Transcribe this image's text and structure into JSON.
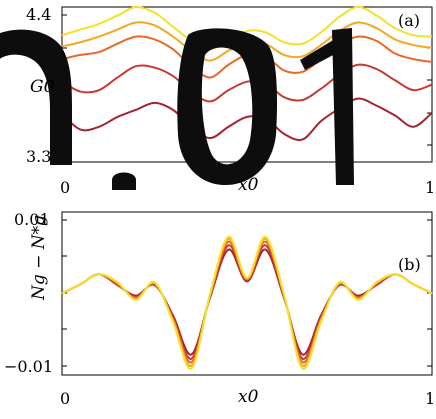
{
  "chart_data": [
    {
      "type": "line",
      "panel_label": "(a)",
      "xlabel": "x0",
      "ylabel": "G0",
      "xlim": [
        0,
        1
      ],
      "ylim": [
        3.3,
        4.4
      ],
      "y_tick_labels": [
        "4.4",
        "3.3"
      ],
      "x_tick_labels": [
        "0",
        "1"
      ],
      "x": [
        0,
        0.05,
        0.1,
        0.15,
        0.2,
        0.25,
        0.3,
        0.35,
        0.4,
        0.45,
        0.5,
        0.55,
        0.6,
        0.65,
        0.7,
        0.75,
        0.8,
        0.85,
        0.9,
        0.95,
        1.0
      ],
      "series": [
        {
          "color": "#f2e02a",
          "values": [
            4.2,
            4.24,
            4.28,
            4.34,
            4.4,
            4.36,
            4.26,
            4.16,
            4.1,
            4.17,
            4.23,
            4.22,
            4.15,
            4.14,
            4.22,
            4.33,
            4.4,
            4.34,
            4.25,
            4.2,
            4.19
          ]
        },
        {
          "color": "#f5a623",
          "values": [
            4.12,
            4.15,
            4.19,
            4.24,
            4.29,
            4.27,
            4.19,
            4.09,
            4.02,
            4.09,
            4.15,
            4.14,
            4.06,
            4.05,
            4.13,
            4.23,
            4.29,
            4.25,
            4.17,
            4.13,
            4.11
          ]
        },
        {
          "color": "#e8692a",
          "values": [
            4.03,
            4.06,
            4.08,
            4.14,
            4.19,
            4.17,
            4.1,
            3.98,
            3.9,
            3.99,
            4.06,
            4.05,
            3.95,
            3.94,
            4.03,
            4.13,
            4.19,
            4.16,
            4.07,
            4.03,
            4.01
          ]
        },
        {
          "color": "#c63a2f",
          "values": [
            3.87,
            3.8,
            3.81,
            3.9,
            3.98,
            3.97,
            3.91,
            3.8,
            3.73,
            3.81,
            3.87,
            3.86,
            3.76,
            3.74,
            3.82,
            3.92,
            3.99,
            3.96,
            3.88,
            3.81,
            3.85
          ]
        },
        {
          "color": "#a5232c",
          "values": [
            3.64,
            3.53,
            3.55,
            3.62,
            3.67,
            3.72,
            3.67,
            3.55,
            3.47,
            3.55,
            3.62,
            3.61,
            3.5,
            3.46,
            3.59,
            3.68,
            3.75,
            3.7,
            3.63,
            3.55,
            3.65
          ]
        }
      ]
    },
    {
      "type": "line",
      "panel_label": "(b)",
      "xlabel": "x0",
      "ylabel": "Ng − N*g",
      "xlim": [
        0,
        1
      ],
      "ylim": [
        -0.0115,
        0.0115
      ],
      "y_tick_labels": [
        "0.01",
        "−0.01"
      ],
      "x_tick_labels": [
        "0",
        "1"
      ],
      "x": [
        0,
        0.05,
        0.1,
        0.15,
        0.2,
        0.25,
        0.3,
        0.35,
        0.4,
        0.45,
        0.5,
        0.55,
        0.6,
        0.65,
        0.7,
        0.75,
        0.8,
        0.85,
        0.9,
        0.95,
        1.0
      ],
      "series": [
        {
          "color": "#a5232c",
          "values": [
            0.0,
            0.0013,
            0.0027,
            0.0012,
            -0.0003,
            0.0012,
            -0.0031,
            -0.0086,
            -0.0006,
            0.0062,
            0.0017,
            0.0062,
            -0.0006,
            -0.0086,
            -0.0031,
            0.0012,
            -0.0003,
            0.0012,
            0.0027,
            0.0013,
            0.0
          ]
        },
        {
          "color": "#c63a2f",
          "values": [
            0.0,
            0.0013,
            0.0027,
            0.0013,
            -0.0005,
            0.0013,
            -0.0034,
            -0.0092,
            -0.0004,
            0.0068,
            0.0019,
            0.0068,
            -0.0004,
            -0.0092,
            -0.0034,
            0.0013,
            -0.0005,
            0.0013,
            0.0027,
            0.0013,
            0.0
          ]
        },
        {
          "color": "#e8692a",
          "values": [
            0.0,
            0.0013,
            0.0027,
            0.0014,
            -0.0006,
            0.0014,
            -0.0036,
            -0.0097,
            -0.0003,
            0.0073,
            0.002,
            0.0073,
            -0.0003,
            -0.0097,
            -0.0036,
            0.0014,
            -0.0006,
            0.0014,
            0.0027,
            0.0013,
            0.0
          ]
        },
        {
          "color": "#f5a623",
          "values": [
            0.0,
            0.0013,
            0.0027,
            0.0015,
            -0.0008,
            0.0015,
            -0.0038,
            -0.0102,
            -0.0002,
            0.0077,
            0.0021,
            0.0077,
            -0.0002,
            -0.0102,
            -0.0038,
            0.0015,
            -0.0008,
            0.0015,
            0.0027,
            0.0013,
            0.0
          ]
        },
        {
          "color": "#f2e02a",
          "values": [
            0.0,
            0.0013,
            0.0027,
            0.0016,
            -0.0009,
            0.0016,
            -0.004,
            -0.0106,
            -0.0001,
            0.008,
            0.0022,
            0.008,
            -0.0001,
            -0.0106,
            -0.004,
            0.0016,
            -0.0009,
            0.0016,
            0.0027,
            0.0013,
            0.0
          ]
        }
      ]
    }
  ]
}
